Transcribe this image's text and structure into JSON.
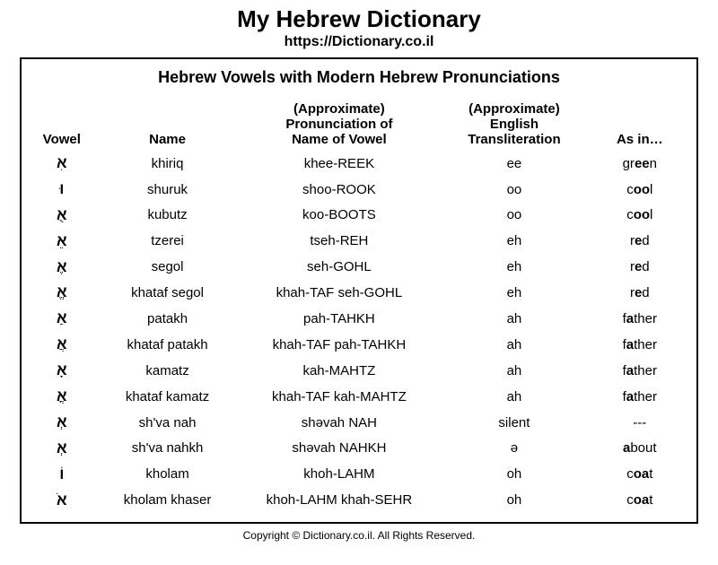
{
  "header": {
    "title": "My Hebrew Dictionary",
    "url": "https://Dictionary.co.il"
  },
  "table": {
    "title": "Hebrew Vowels with Modern Hebrew Pronunciations",
    "columns": {
      "vowel": "Vowel",
      "name": "Name",
      "pron_line1": "(Approximate)",
      "pron_line2": "Pronunciation of",
      "pron_line3": "Name of Vowel",
      "trans_line1": "(Approximate)",
      "trans_line2": "English",
      "trans_line3": "Transliteration",
      "asin": "As in…"
    },
    "rows": [
      {
        "vowel": "אִ",
        "name": "khiriq",
        "pron": "khee-REEK",
        "trans": "ee",
        "asin_pre": "gr",
        "asin_bold": "ee",
        "asin_post": "n"
      },
      {
        "vowel": "וּ",
        "name": "shuruk",
        "pron": "shoo-ROOK",
        "trans": "oo",
        "asin_pre": "c",
        "asin_bold": "oo",
        "asin_post": "l"
      },
      {
        "vowel": "אֻ",
        "name": "kubutz",
        "pron": "koo-BOOTS",
        "trans": "oo",
        "asin_pre": "c",
        "asin_bold": "oo",
        "asin_post": "l"
      },
      {
        "vowel": "אֵ",
        "name": "tzerei",
        "pron": "tseh-REH",
        "trans": "eh",
        "asin_pre": "r",
        "asin_bold": "e",
        "asin_post": "d"
      },
      {
        "vowel": "אֶ",
        "name": "segol",
        "pron": "seh-GOHL",
        "trans": "eh",
        "asin_pre": "r",
        "asin_bold": "e",
        "asin_post": "d"
      },
      {
        "vowel": "אֱ",
        "name": "khataf segol",
        "pron": "khah-TAF seh-GOHL",
        "trans": "eh",
        "asin_pre": "r",
        "asin_bold": "e",
        "asin_post": "d"
      },
      {
        "vowel": "אַ",
        "name": "patakh",
        "pron": "pah-TAHKH",
        "trans": "ah",
        "asin_pre": "f",
        "asin_bold": "a",
        "asin_post": "ther"
      },
      {
        "vowel": "אֲ",
        "name": "khataf patakh",
        "pron": "khah-TAF pah-TAHKH",
        "trans": "ah",
        "asin_pre": "f",
        "asin_bold": "a",
        "asin_post": "ther"
      },
      {
        "vowel": "אָ",
        "name": "kamatz",
        "pron": "kah-MAHTZ",
        "trans": "ah",
        "asin_pre": "f",
        "asin_bold": "a",
        "asin_post": "ther"
      },
      {
        "vowel": "אֳ",
        "name": "khataf kamatz",
        "pron": "khah-TAF kah-MAHTZ",
        "trans": "ah",
        "asin_pre": "f",
        "asin_bold": "a",
        "asin_post": "ther"
      },
      {
        "vowel": "אְ",
        "name": "sh'va nah",
        "pron": "shəvah NAH",
        "trans": "silent",
        "asin_pre": "---",
        "asin_bold": "",
        "asin_post": ""
      },
      {
        "vowel": "אְ",
        "name": "sh'va nahkh",
        "pron": "shəvah NAHKH",
        "trans": "ə",
        "asin_pre": "",
        "asin_bold": "a",
        "asin_post": "bout"
      },
      {
        "vowel": "וֹ",
        "name": "kholam",
        "pron": "khoh-LAHM",
        "trans": "oh",
        "asin_pre": "c",
        "asin_bold": "oa",
        "asin_post": "t"
      },
      {
        "vowel": "אֹ",
        "name": "kholam khaser",
        "pron": "khoh-LAHM khah-SEHR",
        "trans": "oh",
        "asin_pre": "c",
        "asin_bold": "oa",
        "asin_post": "t"
      }
    ]
  },
  "footer": "Copyright © Dictionary.co.il. All Rights Reserved.",
  "style": {
    "background_color": "#ffffff",
    "border_color": "#000000",
    "font_family": "Arial",
    "title_fontsize": 26,
    "url_fontsize": 16,
    "table_title_fontsize": 18,
    "header_cell_fontsize": 15,
    "body_cell_fontsize": 15,
    "footer_fontsize": 12,
    "col_widths_pct": [
      10,
      22,
      30,
      23,
      15
    ]
  }
}
